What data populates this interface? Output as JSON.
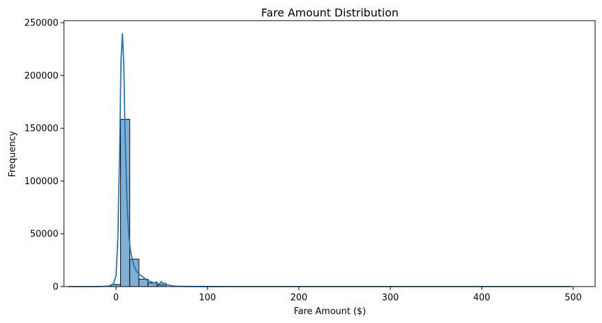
{
  "chart_data": {
    "type": "bar",
    "title": "Fare Amount Distribution",
    "xlabel": "Fare Amount ($)",
    "ylabel": "Frequency",
    "xlim": [
      -57,
      524
    ],
    "ylim": [
      0,
      252000
    ],
    "xticks": [
      0,
      100,
      200,
      300,
      400,
      500
    ],
    "yticks": [
      0,
      50000,
      100000,
      150000,
      200000,
      250000
    ],
    "bin_edges": [
      -5,
      5,
      15,
      25,
      35,
      45,
      55
    ],
    "values": [
      2000,
      158500,
      26000,
      7000,
      3500,
      1500
    ],
    "kde": {
      "x": [
        -52,
        -20,
        -8,
        -3,
        0,
        2,
        4,
        5.5,
        7,
        8.5,
        10,
        12,
        14,
        16,
        18,
        20,
        22,
        25,
        28,
        31,
        34,
        37,
        40,
        42,
        44,
        46,
        48,
        49.5,
        51,
        53,
        56,
        60,
        65,
        75,
        90,
        120,
        200,
        300,
        400,
        498
      ],
      "y": [
        0,
        0,
        500,
        2500,
        10000,
        45000,
        130000,
        215000,
        240000,
        210000,
        140000,
        80000,
        48000,
        33000,
        25000,
        19000,
        15000,
        12000,
        10000,
        8000,
        6000,
        5000,
        4000,
        3200,
        4500,
        2800,
        2500,
        4800,
        2600,
        3500,
        1800,
        900,
        400,
        150,
        50,
        0,
        0,
        0,
        0,
        0
      ]
    },
    "colors": {
      "bar_fill": "#7fb0d4",
      "line": "#1f77b4"
    },
    "grid": false
  }
}
